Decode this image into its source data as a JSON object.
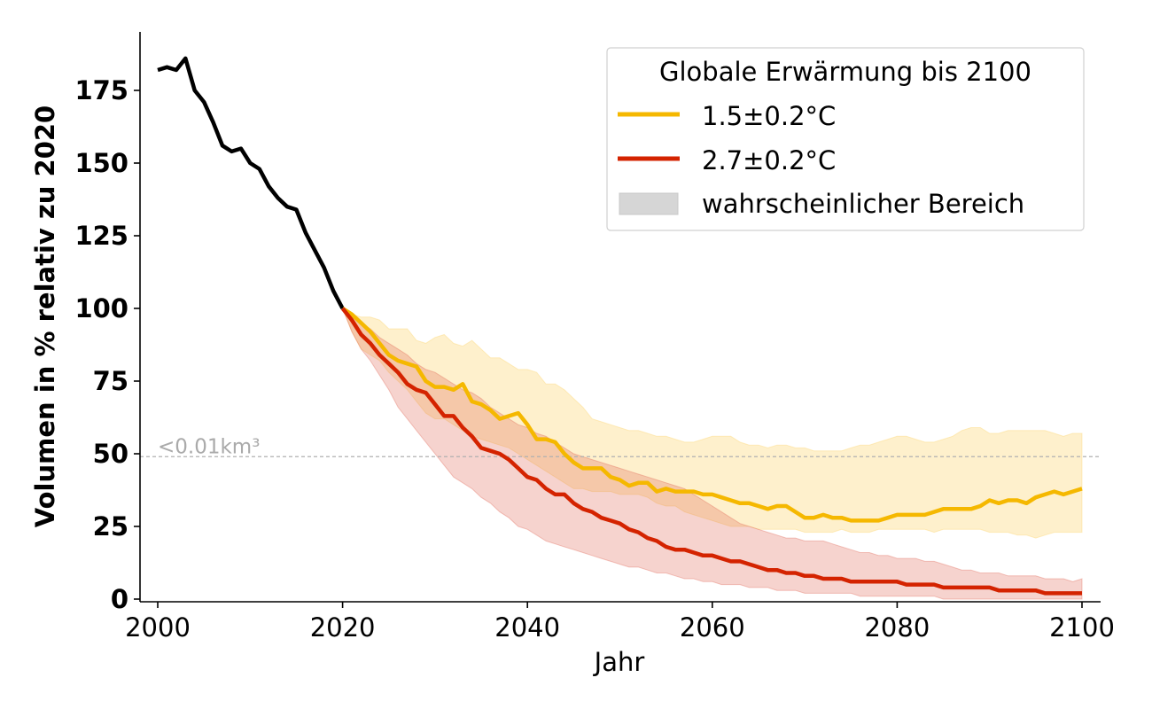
{
  "chart_data": {
    "type": "line",
    "title": "",
    "xlabel": "Jahr",
    "ylabel": "Volumen in % relativ zu 2020",
    "xlim": [
      1998,
      2102
    ],
    "ylim": [
      -1,
      195
    ],
    "xticks": [
      2000,
      2020,
      2040,
      2060,
      2080,
      2100
    ],
    "yticks": [
      0,
      25,
      50,
      75,
      100,
      125,
      150,
      175
    ],
    "grid": false,
    "legend": {
      "title": "Globale Erwärmung bis 2100",
      "placement": "top-right",
      "entries": [
        {
          "label": "1.5±0.2°C",
          "type": "line",
          "color": "#f5b800"
        },
        {
          "label": "2.7±0.2°C",
          "type": "line",
          "color": "#d42300"
        },
        {
          "label": "wahrscheinlicher Bereich",
          "type": "patch",
          "color": "#d6d6d6"
        }
      ]
    },
    "reference_line": {
      "y": 49,
      "label": "<0.01km³",
      "color": "#b0b0b0",
      "style": "dashed"
    },
    "historical": {
      "name": "historical",
      "color": "#000000",
      "x": [
        2000,
        2001,
        2002,
        2003,
        2004,
        2005,
        2006,
        2007,
        2008,
        2009,
        2010,
        2011,
        2012,
        2013,
        2014,
        2015,
        2016,
        2017,
        2018,
        2019,
        2020
      ],
      "y": [
        182,
        183,
        182,
        186,
        175,
        171,
        164,
        156,
        154,
        155,
        150,
        148,
        142,
        138,
        135,
        134,
        126,
        120,
        114,
        106,
        100
      ]
    },
    "series": [
      {
        "name": "1.5±0.2°C",
        "color": "#f5b800",
        "band_color": "#fde9b0",
        "x": [
          2020,
          2021,
          2022,
          2023,
          2024,
          2025,
          2026,
          2027,
          2028,
          2029,
          2030,
          2031,
          2032,
          2033,
          2034,
          2035,
          2036,
          2037,
          2038,
          2039,
          2040,
          2041,
          2042,
          2043,
          2044,
          2045,
          2046,
          2047,
          2048,
          2049,
          2050,
          2051,
          2052,
          2053,
          2054,
          2055,
          2056,
          2057,
          2058,
          2059,
          2060,
          2061,
          2062,
          2063,
          2064,
          2065,
          2066,
          2067,
          2068,
          2069,
          2070,
          2071,
          2072,
          2073,
          2074,
          2075,
          2076,
          2077,
          2078,
          2079,
          2080,
          2081,
          2082,
          2083,
          2084,
          2085,
          2086,
          2087,
          2088,
          2089,
          2090,
          2091,
          2092,
          2093,
          2094,
          2095,
          2096,
          2097,
          2098,
          2099,
          2100
        ],
        "y": [
          100,
          98,
          95,
          92,
          88,
          84,
          82,
          81,
          80,
          75,
          73,
          73,
          72,
          74,
          68,
          67,
          65,
          62,
          63,
          64,
          60,
          55,
          55,
          54,
          50,
          47,
          45,
          45,
          45,
          42,
          41,
          39,
          40,
          40,
          37,
          38,
          37,
          37,
          37,
          36,
          36,
          35,
          34,
          33,
          33,
          32,
          31,
          32,
          32,
          30,
          28,
          28,
          29,
          28,
          28,
          27,
          27,
          27,
          27,
          28,
          29,
          29,
          29,
          29,
          30,
          31,
          31,
          31,
          31,
          32,
          34,
          33,
          34,
          34,
          33,
          35,
          36,
          37,
          36,
          37,
          38
        ],
        "lower": [
          100,
          92,
          86,
          84,
          82,
          78,
          75,
          72,
          68,
          64,
          62,
          62,
          60,
          58,
          56,
          55,
          54,
          53,
          52,
          50,
          48,
          46,
          44,
          42,
          40,
          38,
          38,
          37,
          37,
          37,
          36,
          36,
          36,
          35,
          33,
          32,
          32,
          30,
          29,
          28,
          27,
          26,
          25,
          25,
          25,
          24,
          24,
          24,
          24,
          24,
          23,
          23,
          23,
          23,
          24,
          23,
          23,
          23,
          24,
          24,
          24,
          24,
          24,
          24,
          23,
          24,
          24,
          24,
          24,
          24,
          23,
          23,
          23,
          22,
          22,
          21,
          22,
          23,
          23,
          23,
          23
        ],
        "upper": [
          100,
          98,
          97,
          97,
          96,
          93,
          93,
          93,
          89,
          88,
          90,
          91,
          88,
          87,
          89,
          86,
          83,
          83,
          81,
          79,
          79,
          78,
          74,
          74,
          72,
          69,
          66,
          62,
          61,
          60,
          59,
          58,
          58,
          57,
          56,
          56,
          55,
          54,
          54,
          55,
          56,
          56,
          56,
          54,
          53,
          53,
          52,
          53,
          53,
          52,
          52,
          51,
          51,
          51,
          51,
          52,
          53,
          53,
          54,
          55,
          56,
          56,
          55,
          54,
          54,
          55,
          56,
          58,
          59,
          59,
          57,
          57,
          58,
          58,
          58,
          58,
          58,
          57,
          56,
          57,
          57
        ]
      },
      {
        "name": "2.7±0.2°C",
        "color": "#d42300",
        "band_color": "#f3c7c2",
        "x": [
          2020,
          2021,
          2022,
          2023,
          2024,
          2025,
          2026,
          2027,
          2028,
          2029,
          2030,
          2031,
          2032,
          2033,
          2034,
          2035,
          2036,
          2037,
          2038,
          2039,
          2040,
          2041,
          2042,
          2043,
          2044,
          2045,
          2046,
          2047,
          2048,
          2049,
          2050,
          2051,
          2052,
          2053,
          2054,
          2055,
          2056,
          2057,
          2058,
          2059,
          2060,
          2061,
          2062,
          2063,
          2064,
          2065,
          2066,
          2067,
          2068,
          2069,
          2070,
          2071,
          2072,
          2073,
          2074,
          2075,
          2076,
          2077,
          2078,
          2079,
          2080,
          2081,
          2082,
          2083,
          2084,
          2085,
          2086,
          2087,
          2088,
          2089,
          2090,
          2091,
          2092,
          2093,
          2094,
          2095,
          2096,
          2097,
          2098,
          2099,
          2100
        ],
        "y": [
          100,
          96,
          91,
          88,
          84,
          81,
          78,
          74,
          72,
          71,
          67,
          63,
          63,
          59,
          56,
          52,
          51,
          50,
          48,
          45,
          42,
          41,
          38,
          36,
          36,
          33,
          31,
          30,
          28,
          27,
          26,
          24,
          23,
          21,
          20,
          18,
          17,
          17,
          16,
          15,
          15,
          14,
          13,
          13,
          12,
          11,
          10,
          10,
          9,
          9,
          8,
          8,
          7,
          7,
          7,
          6,
          6,
          6,
          6,
          6,
          6,
          5,
          5,
          5,
          5,
          4,
          4,
          4,
          4,
          4,
          4,
          3,
          3,
          3,
          3,
          3,
          2,
          2,
          2,
          2,
          2
        ],
        "lower": [
          100,
          92,
          86,
          82,
          77,
          72,
          66,
          62,
          58,
          54,
          50,
          46,
          42,
          40,
          38,
          35,
          33,
          30,
          28,
          25,
          24,
          22,
          20,
          19,
          18,
          17,
          16,
          15,
          14,
          13,
          12,
          11,
          11,
          10,
          9,
          9,
          8,
          7,
          7,
          6,
          6,
          5,
          5,
          5,
          4,
          4,
          4,
          3,
          3,
          3,
          2,
          2,
          2,
          2,
          2,
          2,
          1,
          1,
          1,
          1,
          1,
          1,
          1,
          1,
          1,
          0,
          0,
          0,
          0,
          0,
          0,
          0,
          0,
          0,
          0,
          0,
          0,
          0,
          0,
          0,
          0
        ],
        "upper": [
          100,
          97,
          95,
          93,
          90,
          88,
          86,
          84,
          81,
          79,
          78,
          76,
          74,
          72,
          71,
          69,
          66,
          64,
          62,
          60,
          59,
          57,
          56,
          54,
          52,
          50,
          49,
          48,
          47,
          46,
          45,
          44,
          43,
          42,
          41,
          40,
          39,
          38,
          36,
          34,
          32,
          30,
          28,
          26,
          25,
          24,
          23,
          22,
          21,
          21,
          20,
          20,
          20,
          19,
          18,
          17,
          16,
          16,
          15,
          15,
          14,
          14,
          14,
          13,
          13,
          12,
          11,
          10,
          10,
          9,
          9,
          9,
          8,
          8,
          8,
          8,
          7,
          7,
          7,
          6,
          7
        ]
      }
    ]
  }
}
